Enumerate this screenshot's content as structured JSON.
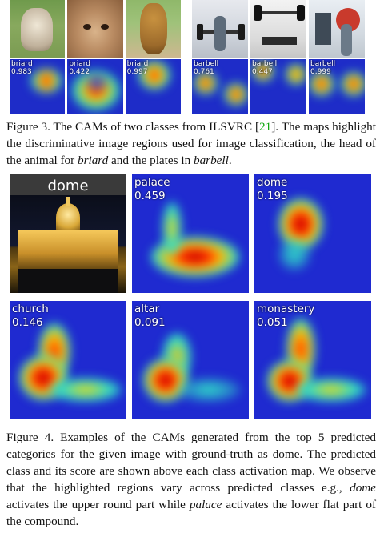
{
  "figure3": {
    "cams": [
      {
        "label": "briard",
        "score": "0.983"
      },
      {
        "label": "briard",
        "score": "0.422"
      },
      {
        "label": "briard",
        "score": "0.997"
      },
      {
        "label": "barbell",
        "score": "0.761"
      },
      {
        "label": "barbell",
        "score": "0.447"
      },
      {
        "label": "barbell",
        "score": "0.999"
      }
    ],
    "caption": {
      "prefix": "Figure 3. The CAMs of two classes from ILSVRC [",
      "ref": "21",
      "mid1": "]. The maps highlight the discriminative image regions used for image classification, the head of the animal for ",
      "em1": "briard",
      "mid2": " and the plates in ",
      "em2": "barbell",
      "suffix": "."
    }
  },
  "figure4": {
    "input_label": "dome",
    "cams": [
      {
        "label": "palace",
        "score": "0.459"
      },
      {
        "label": "dome",
        "score": "0.195"
      },
      {
        "label": "church",
        "score": "0.146"
      },
      {
        "label": "altar",
        "score": "0.091"
      },
      {
        "label": "monastery",
        "score": "0.051"
      }
    ],
    "caption": {
      "prefix": "Figure 4. Examples of the CAMs generated from the top 5 predicted categories for the given image with ground-truth as dome. The predicted class and its score are shown above each class activation map. We observe that the highlighted regions vary across predicted classes e.g., ",
      "em1": "dome",
      "mid": " activates the upper round part while ",
      "em2": "palace",
      "suffix": " activates the lower flat part of the compound."
    }
  }
}
